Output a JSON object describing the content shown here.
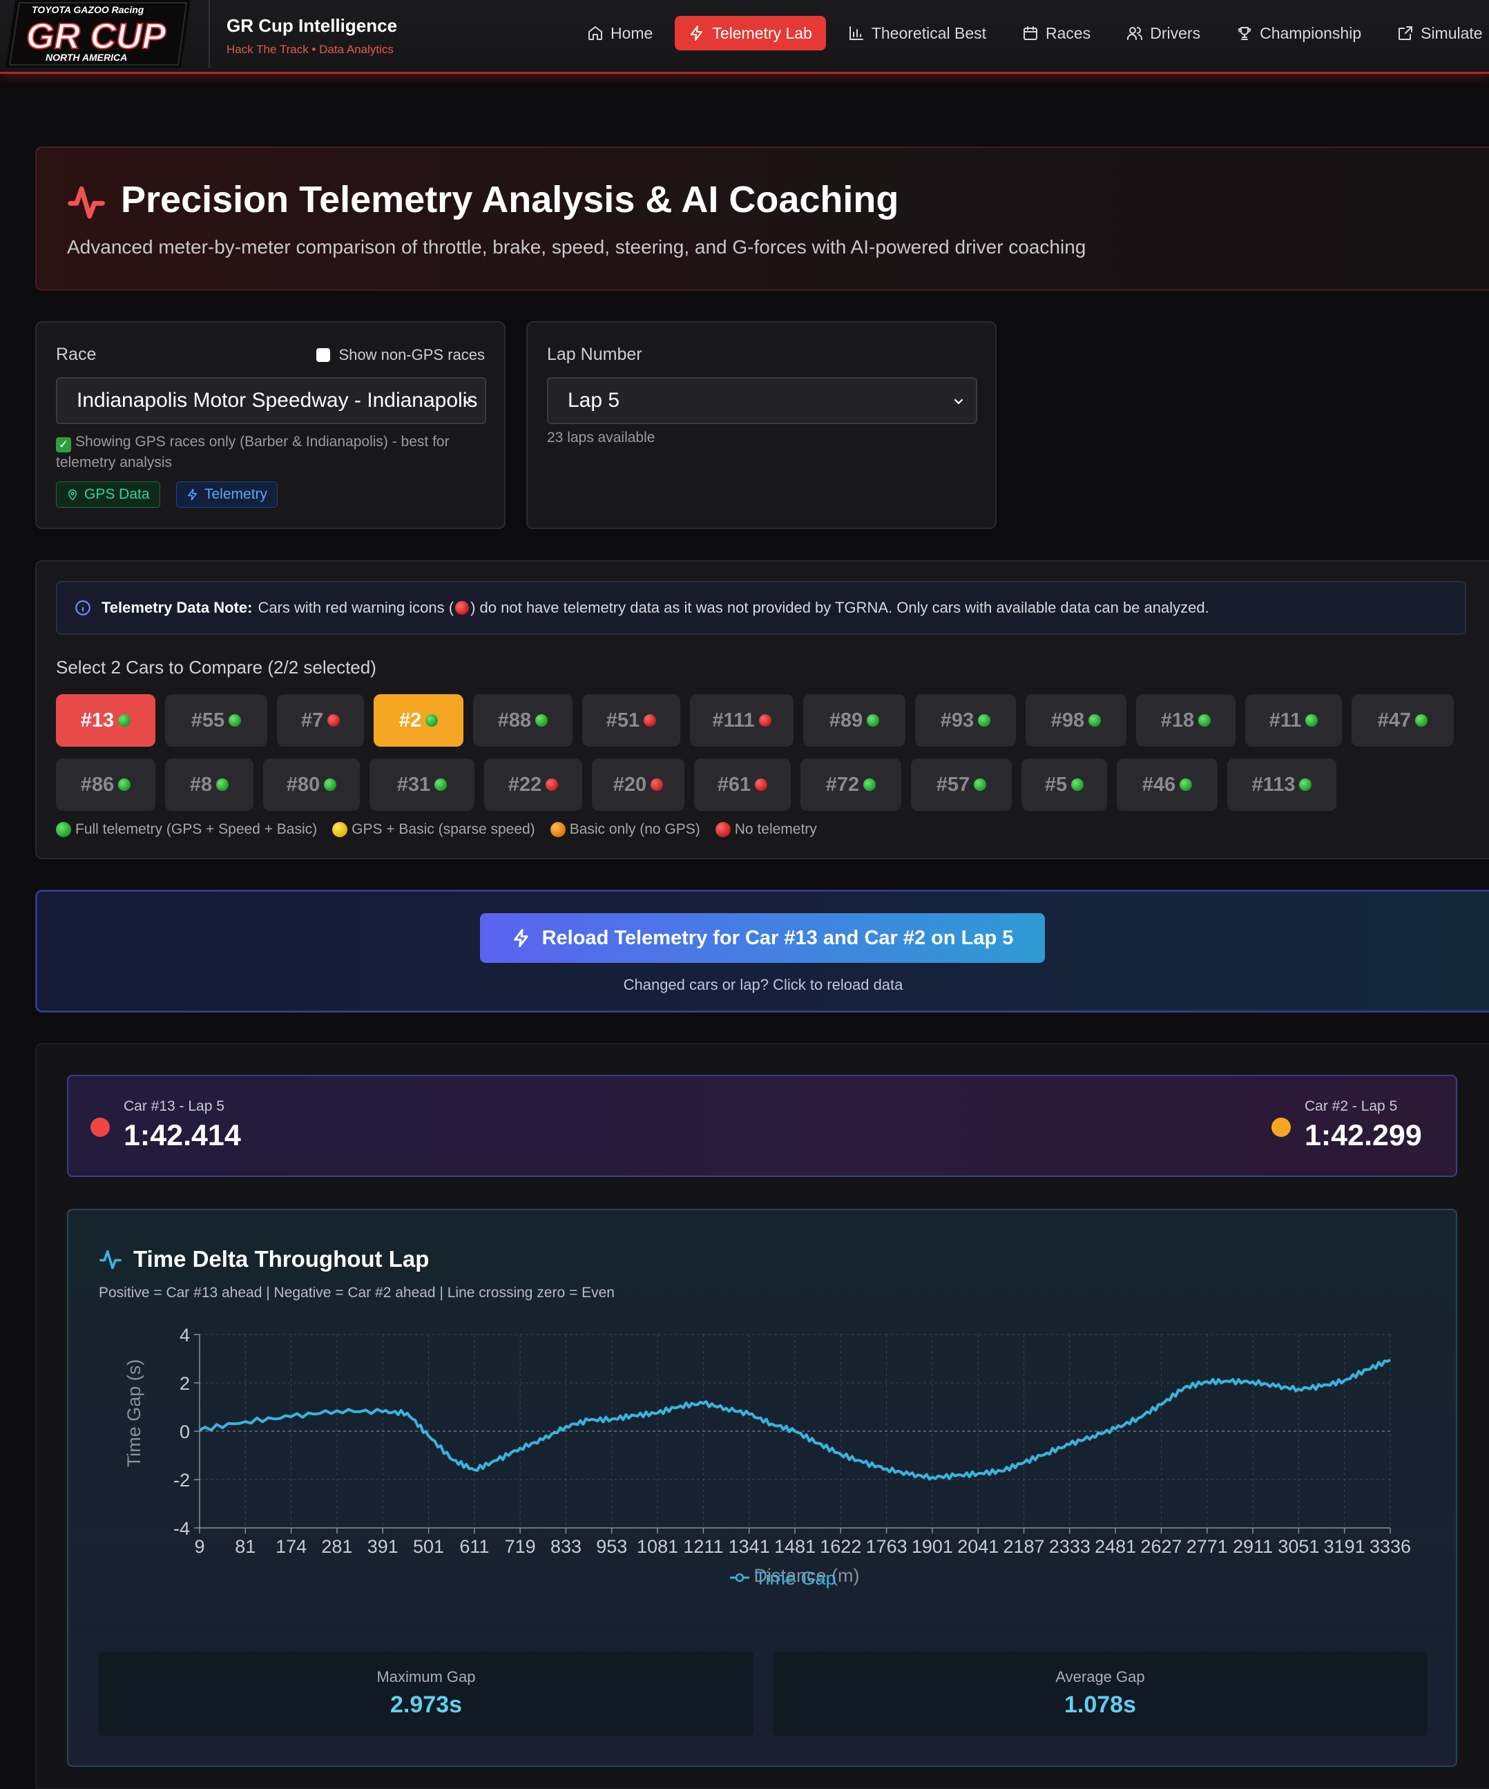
{
  "brand": {
    "logo_top": "TOYOTA GAZOO Racing",
    "logo_main": "GR CUP",
    "logo_bottom": "NORTH AMERICA",
    "title": "GR Cup Intelligence",
    "subtitle": "Hack The Track • Data Analytics"
  },
  "nav": {
    "items": [
      {
        "label": "Home",
        "icon": "home-icon"
      },
      {
        "label": "Telemetry Lab",
        "icon": "zap-icon",
        "active": true
      },
      {
        "label": "Theoretical Best",
        "icon": "bar-chart-icon"
      },
      {
        "label": "Races",
        "icon": "calendar-icon"
      },
      {
        "label": "Drivers",
        "icon": "users-icon"
      },
      {
        "label": "Championship",
        "icon": "trophy-icon"
      },
      {
        "label": "Simulate",
        "icon": "share-icon"
      }
    ]
  },
  "hero": {
    "title": "Precision Telemetry Analysis & AI Coaching",
    "description": "Advanced meter-by-meter comparison of throttle, brake, speed, steering, and G-forces with AI-powered driver coaching"
  },
  "race_panel": {
    "label": "Race",
    "checkbox_label": "Show non-GPS races",
    "checkbox_checked": false,
    "selected": "Indianapolis Motor Speedway - Indianapolis",
    "hint": "Showing GPS races only (Barber & Indianapolis) - best for telemetry analysis",
    "tags": [
      "GPS Data",
      "Telemetry"
    ]
  },
  "lap_panel": {
    "label": "Lap Number",
    "selected": "Lap 5",
    "hint": "23 laps available"
  },
  "cars_panel": {
    "note_bold": "Telemetry Data Note:",
    "note_before": "Cars with red warning icons (",
    "note_after": ") do not have telemetry data as it was not provided by TGRNA. Only cars with available data can be analyzed.",
    "select_title": "Select 2 Cars to Compare (2/2 selected)",
    "rows": [
      [
        {
          "label": "#13",
          "status": "full",
          "selected": "primary"
        },
        {
          "label": "#55",
          "status": "full"
        },
        {
          "label": "#7",
          "status": "none"
        },
        {
          "label": "#2",
          "status": "full",
          "selected": "secondary"
        },
        {
          "label": "#88",
          "status": "full"
        },
        {
          "label": "#51",
          "status": "none"
        },
        {
          "label": "#111",
          "status": "none"
        },
        {
          "label": "#89",
          "status": "full"
        },
        {
          "label": "#93",
          "status": "full"
        },
        {
          "label": "#98",
          "status": "full"
        },
        {
          "label": "#18",
          "status": "full"
        },
        {
          "label": "#11",
          "status": "full"
        },
        {
          "label": "#47",
          "status": "full"
        }
      ],
      [
        {
          "label": "#86",
          "status": "full"
        },
        {
          "label": "#8",
          "status": "full"
        },
        {
          "label": "#80",
          "status": "full"
        },
        {
          "label": "#31",
          "status": "full"
        },
        {
          "label": "#22",
          "status": "none"
        },
        {
          "label": "#20",
          "status": "none"
        },
        {
          "label": "#61",
          "status": "none"
        },
        {
          "label": "#72",
          "status": "full"
        },
        {
          "label": "#57",
          "status": "full"
        },
        {
          "label": "#5",
          "status": "full"
        },
        {
          "label": "#46",
          "status": "full"
        },
        {
          "label": "#113",
          "status": "full"
        }
      ]
    ],
    "legend": [
      {
        "label": "Full telemetry (GPS + Speed + Basic)",
        "color": "green"
      },
      {
        "label": "GPS + Basic (sparse speed)",
        "color": "yellow"
      },
      {
        "label": "Basic only (no GPS)",
        "color": "orange"
      },
      {
        "label": "No telemetry",
        "color": "red"
      }
    ]
  },
  "reload": {
    "button_label": "Reload Telemetry for Car #13 and Car #2 on Lap 5",
    "subtext": "Changed cars or lap? Click to reload data"
  },
  "laps": {
    "left": {
      "label": "Car #13 - Lap 5",
      "time": "1:42.414",
      "color": "#ef4444"
    },
    "right": {
      "label": "Car #2 - Lap 5",
      "time": "1:42.299",
      "color": "#f5a623"
    }
  },
  "delta_card": {
    "title": "Time Delta Throughout Lap",
    "subtitle": "Positive = Car #13 ahead | Negative = Car #2 ahead | Line crossing zero = Even",
    "stats": [
      {
        "label": "Maximum Gap",
        "value": "2.973s"
      },
      {
        "label": "Average Gap",
        "value": "1.078s"
      }
    ]
  },
  "chart_data": {
    "type": "line",
    "title": "",
    "xlabel": "Distance (m)",
    "ylabel": "Time Gap (s)",
    "ylim": [
      -4,
      4
    ],
    "yticks": [
      4,
      2,
      0,
      -2,
      -4
    ],
    "xticks": [
      "9",
      "81",
      "174",
      "281",
      "391",
      "501",
      "611",
      "719",
      "833",
      "953",
      "1081",
      "1211",
      "1341",
      "1481",
      "1622",
      "1763",
      "1901",
      "2041",
      "2187",
      "2333",
      "2481",
      "2627",
      "2771",
      "2911",
      "3051",
      "3191",
      "3336"
    ],
    "grid": true,
    "legend_position": "bottom-center",
    "series": [
      {
        "name": "Time Gap",
        "color": "#3ab3de",
        "x": [
          9,
          81,
          174,
          281,
          391,
          450,
          501,
          560,
          611,
          665,
          719,
          776,
          833,
          893,
          953,
          1017,
          1081,
          1146,
          1211,
          1276,
          1341,
          1411,
          1481,
          1552,
          1622,
          1692,
          1763,
          1832,
          1901,
          1971,
          2041,
          2114,
          2187,
          2260,
          2333,
          2407,
          2481,
          2554,
          2627,
          2699,
          2771,
          2841,
          2911,
          2981,
          3051,
          3121,
          3191,
          3263,
          3336
        ],
        "y": [
          0.05,
          0.4,
          0.6,
          0.85,
          0.8,
          0.75,
          -0.2,
          -1.2,
          -1.6,
          -1.2,
          -0.7,
          -0.35,
          0.2,
          0.45,
          0.5,
          0.65,
          0.75,
          1.05,
          1.15,
          0.95,
          0.7,
          0.3,
          0.0,
          -0.5,
          -0.95,
          -1.3,
          -1.55,
          -1.8,
          -1.9,
          -1.85,
          -1.75,
          -1.65,
          -1.3,
          -0.9,
          -0.55,
          -0.2,
          0.1,
          0.55,
          1.1,
          1.8,
          2.05,
          2.05,
          2.05,
          1.85,
          1.75,
          1.85,
          2.1,
          2.55,
          2.95
        ]
      }
    ]
  }
}
